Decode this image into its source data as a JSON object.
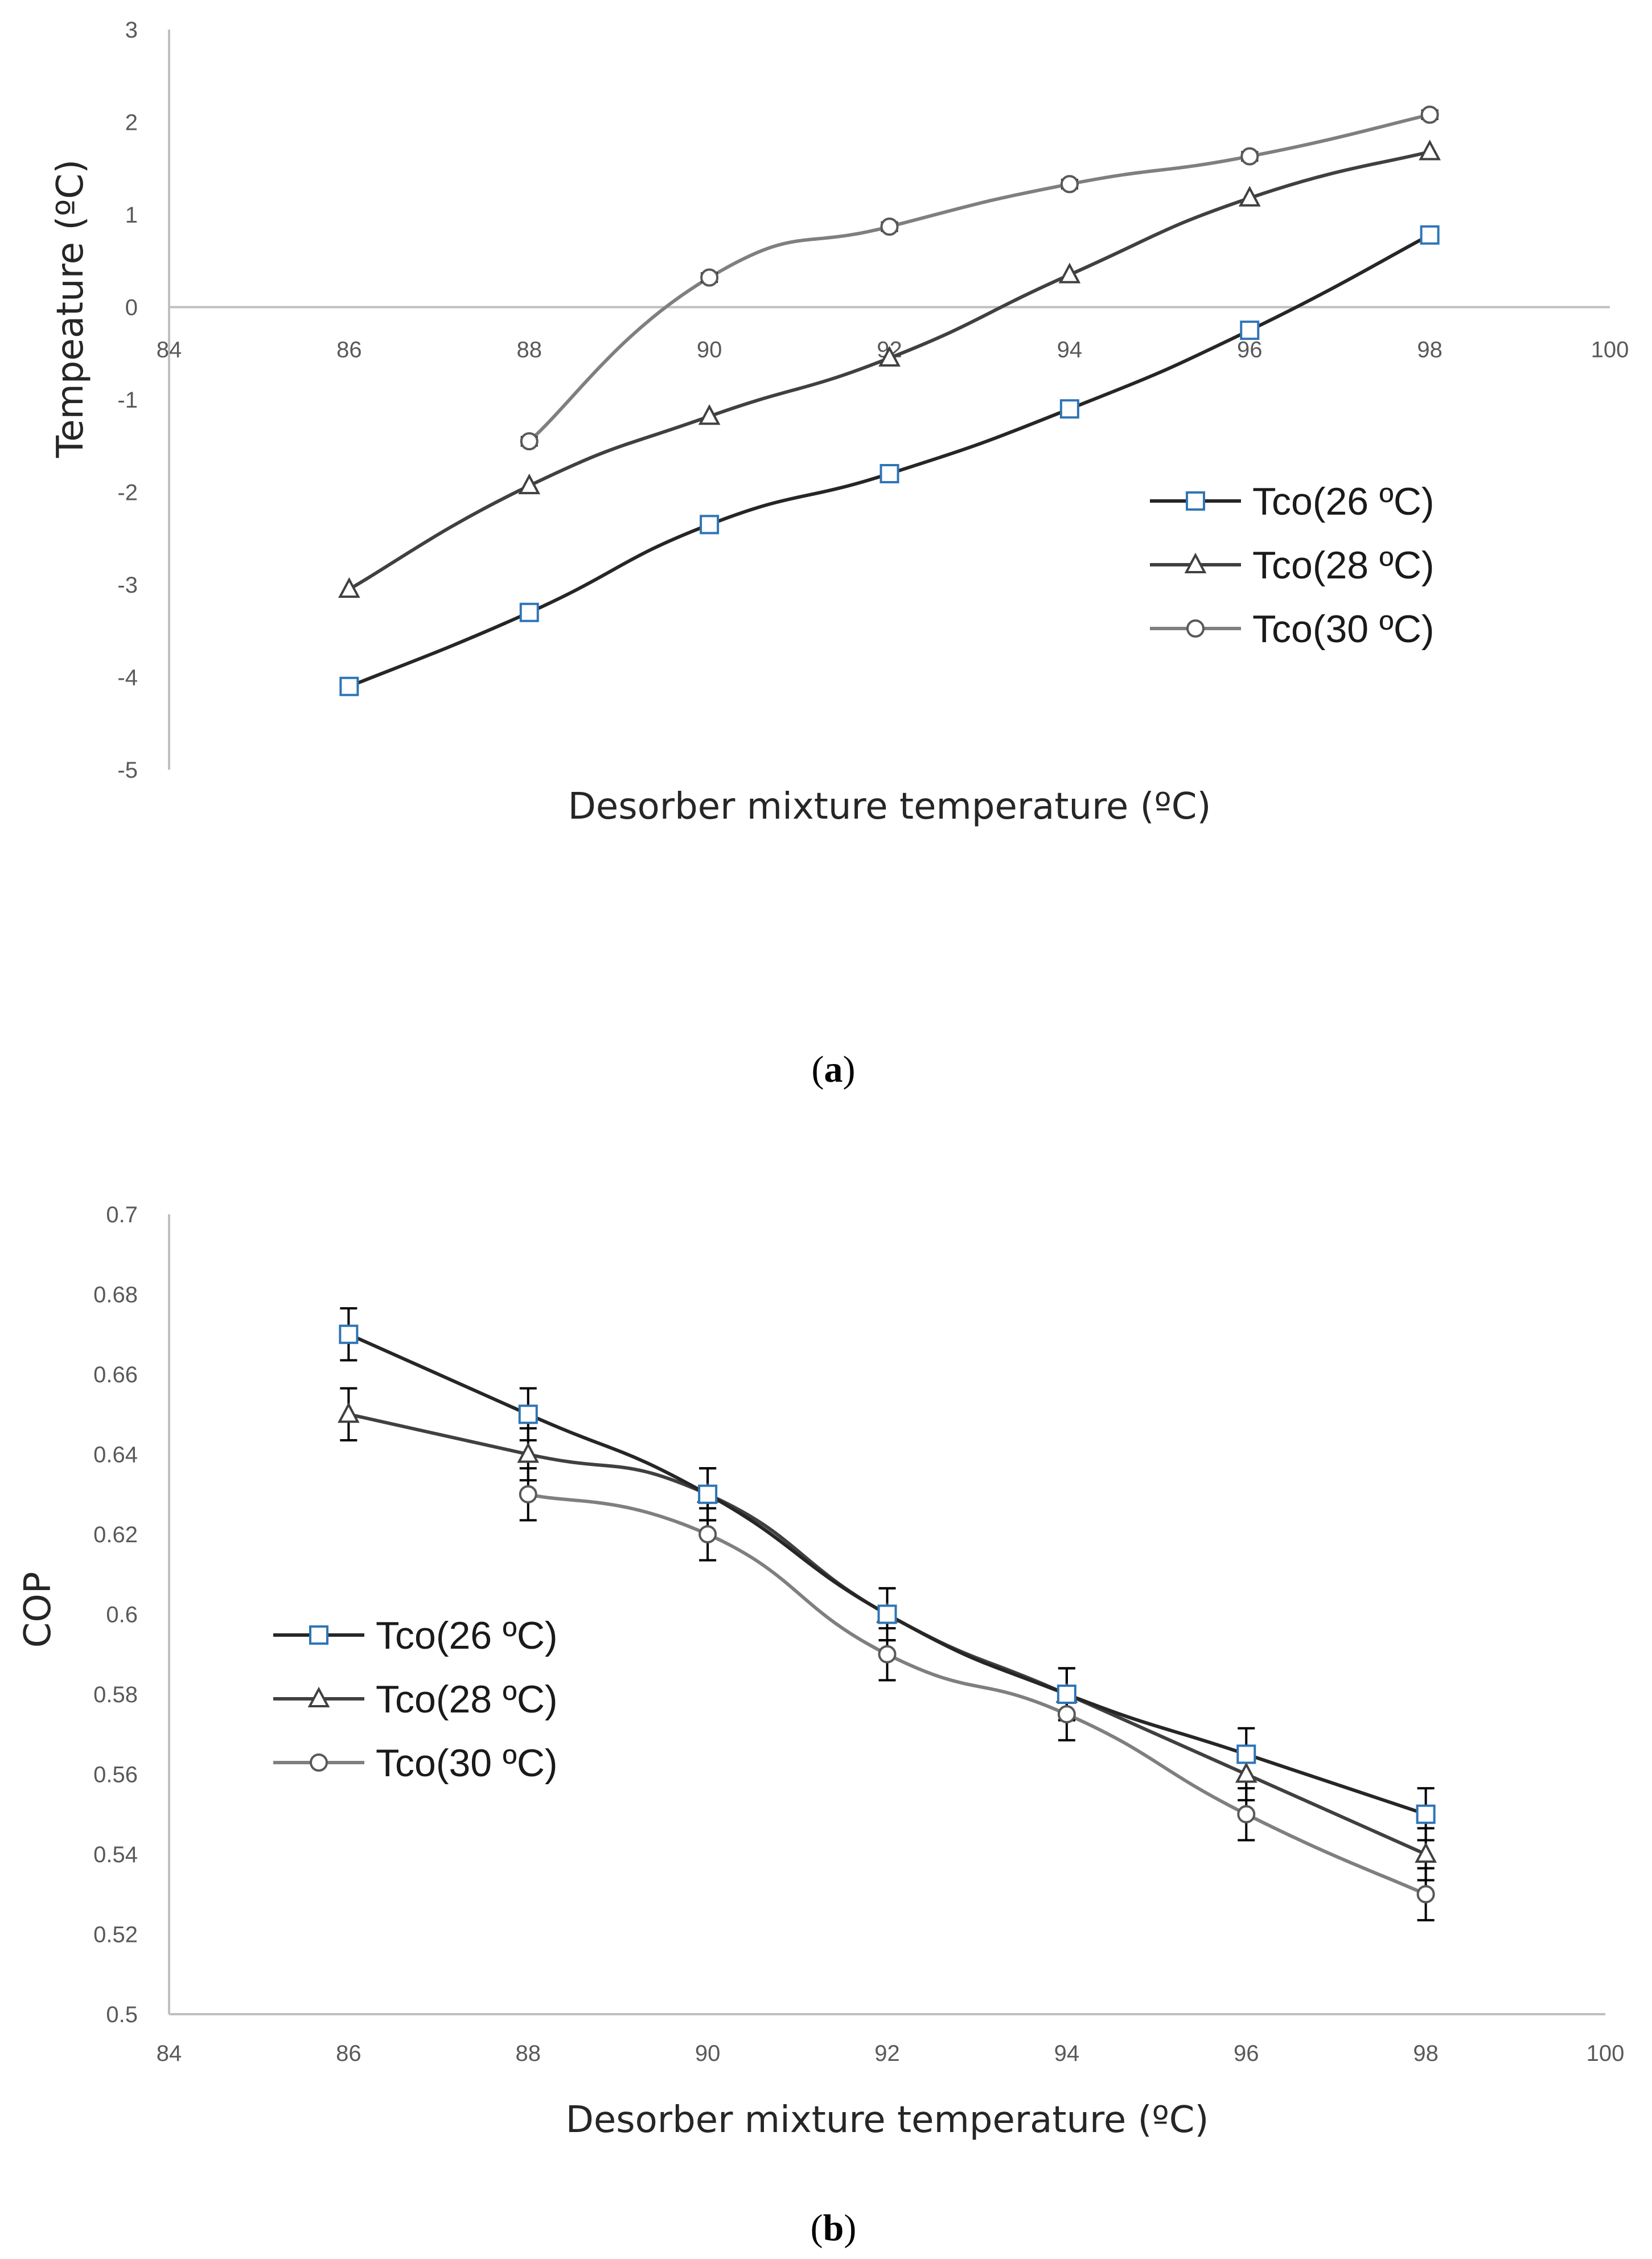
{
  "chart_data": [
    {
      "type": "line",
      "panel_label_open": "(",
      "panel_label_letter": "a",
      "panel_label_close": ")",
      "xlabel": "Desorber mixture temperature (ºC)",
      "ylabel": "Tempeature (ºC)",
      "xlim": [
        84,
        100
      ],
      "ylim": [
        -5,
        3
      ],
      "xticks": [
        "84",
        "86",
        "88",
        "90",
        "92",
        "94",
        "96",
        "98",
        "100"
      ],
      "yticks": [
        "-5",
        "-4",
        "-3",
        "-2",
        "-1",
        "0",
        "1",
        "2",
        "3"
      ],
      "legend_position": "right",
      "series": [
        {
          "name": "Tco(26 ºC)",
          "marker": "square",
          "color": "#262626",
          "marker_color": "#2e75b6",
          "x": [
            86,
            88,
            90,
            92,
            94,
            96,
            98
          ],
          "y": [
            -4.1,
            -3.3,
            -2.35,
            -1.8,
            -1.1,
            -0.25,
            0.78
          ]
        },
        {
          "name": "Tco(28 ºC)",
          "marker": "triangle",
          "color": "#404040",
          "marker_color": "#404040",
          "x": [
            86,
            88,
            90,
            92,
            94,
            96,
            98
          ],
          "y": [
            -3.05,
            -1.93,
            -1.18,
            -0.55,
            0.35,
            1.18,
            1.68
          ]
        },
        {
          "name": "Tco(30 ºC)",
          "marker": "circle",
          "color": "#7f7f7f",
          "marker_color": "#595959",
          "x": [
            88,
            90,
            92,
            94,
            96,
            98
          ],
          "y": [
            -1.45,
            0.32,
            0.87,
            1.33,
            1.63,
            2.08
          ]
        }
      ]
    },
    {
      "type": "line",
      "panel_label_open": "(",
      "panel_label_letter": "b",
      "panel_label_close": ")",
      "xlabel": "Desorber mixture temperature (ºC)",
      "ylabel": "COP",
      "xlim": [
        84,
        100
      ],
      "ylim": [
        0.5,
        0.7
      ],
      "xticks": [
        "84",
        "86",
        "88",
        "90",
        "92",
        "94",
        "96",
        "98",
        "100"
      ],
      "yticks": [
        "0.5",
        "0.52",
        "0.54",
        "0.56",
        "0.58",
        "0.6",
        "0.62",
        "0.64",
        "0.66",
        "0.68",
        "0.7"
      ],
      "legend_position": "left",
      "error_bar": 0.0065,
      "series": [
        {
          "name": "Tco(26 ºC)",
          "marker": "square",
          "color": "#262626",
          "marker_color": "#2e75b6",
          "x": [
            86,
            88,
            90,
            92,
            94,
            96,
            98
          ],
          "y": [
            0.67,
            0.65,
            0.63,
            0.6,
            0.58,
            0.565,
            0.55
          ]
        },
        {
          "name": "Tco(28 ºC)",
          "marker": "triangle",
          "color": "#404040",
          "marker_color": "#404040",
          "x": [
            86,
            88,
            90,
            92,
            94,
            96,
            98
          ],
          "y": [
            0.65,
            0.64,
            0.63,
            0.6,
            0.58,
            0.56,
            0.54
          ]
        },
        {
          "name": "Tco(30 ºC)",
          "marker": "circle",
          "color": "#7f7f7f",
          "marker_color": "#595959",
          "x": [
            88,
            90,
            92,
            94,
            96,
            98
          ],
          "y": [
            0.63,
            0.62,
            0.59,
            0.575,
            0.55,
            0.53
          ]
        }
      ]
    }
  ]
}
